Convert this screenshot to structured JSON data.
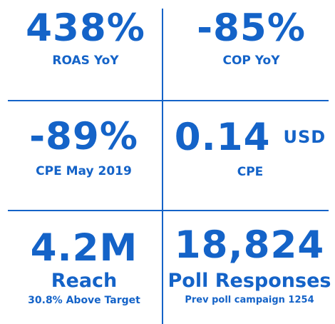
{
  "accent_color": "#1463c8",
  "background_color": "#ffffff",
  "metrics": [
    {
      "value": "438%",
      "label": "ROAS YoY"
    },
    {
      "value": "-85%",
      "label": "COP YoY"
    },
    {
      "value": "-89%",
      "label": "CPE May 2019"
    },
    {
      "value": "0.14",
      "unit": "USD",
      "label": "CPE"
    },
    {
      "value": "4.2M",
      "label": "Reach",
      "sublabel": "30.8% Above Target"
    },
    {
      "value": "18,824",
      "label": "Poll Responses",
      "sublabel": "Prev poll campaign 1254"
    }
  ]
}
